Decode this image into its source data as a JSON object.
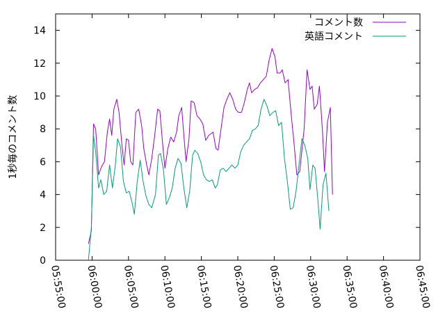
{
  "chart_data": {
    "type": "line",
    "title": "",
    "xlabel": "",
    "ylabel": "1秒毎のコメント数",
    "xlim": [
      "05:55:00",
      "06:45:00"
    ],
    "ylim": [
      0,
      15
    ],
    "x_ticks": [
      "05:55:00",
      "06:00:00",
      "06:05:00",
      "06:10:00",
      "06:15:00",
      "06:20:00",
      "06:25:00",
      "06:30:00",
      "06:35:00",
      "06:40:00",
      "06:45:00"
    ],
    "y_ticks": [
      0,
      2,
      4,
      6,
      8,
      10,
      12,
      14
    ],
    "grid": false,
    "legend_position": "top-right",
    "series": [
      {
        "name": "コメント数",
        "color": "#9400d3",
        "points": [
          [
            "05:59:30",
            1.0
          ],
          [
            "05:59:54",
            1.8
          ],
          [
            "06:00:12",
            8.3
          ],
          [
            "06:00:30",
            8.0
          ],
          [
            "06:00:54",
            5.2
          ],
          [
            "06:01:18",
            5.7
          ],
          [
            "06:01:42",
            6.0
          ],
          [
            "06:02:06",
            7.8
          ],
          [
            "06:02:24",
            8.6
          ],
          [
            "06:02:42",
            7.6
          ],
          [
            "06:03:00",
            9.2
          ],
          [
            "06:03:24",
            9.8
          ],
          [
            "06:03:42",
            9.0
          ],
          [
            "06:04:06",
            7.0
          ],
          [
            "06:04:24",
            5.8
          ],
          [
            "06:04:42",
            7.4
          ],
          [
            "06:05:00",
            7.3
          ],
          [
            "06:05:18",
            6.0
          ],
          [
            "06:05:36",
            5.8
          ],
          [
            "06:06:00",
            9.0
          ],
          [
            "06:06:24",
            9.2
          ],
          [
            "06:06:48",
            8.2
          ],
          [
            "06:07:06",
            6.8
          ],
          [
            "06:07:30",
            5.8
          ],
          [
            "06:07:48",
            5.2
          ],
          [
            "06:08:12",
            6.2
          ],
          [
            "06:08:36",
            7.6
          ],
          [
            "06:09:00",
            9.2
          ],
          [
            "06:09:18",
            9.1
          ],
          [
            "06:09:42",
            7.0
          ],
          [
            "06:10:00",
            5.6
          ],
          [
            "06:10:24",
            6.8
          ],
          [
            "06:10:48",
            7.5
          ],
          [
            "06:11:12",
            7.2
          ],
          [
            "06:11:36",
            7.8
          ],
          [
            "06:11:54",
            8.8
          ],
          [
            "06:12:18",
            9.3
          ],
          [
            "06:12:36",
            7.6
          ],
          [
            "06:12:54",
            6.0
          ],
          [
            "06:13:18",
            7.4
          ],
          [
            "06:13:36",
            9.7
          ],
          [
            "06:14:00",
            9.6
          ],
          [
            "06:14:24",
            8.8
          ],
          [
            "06:14:48",
            8.6
          ],
          [
            "06:15:12",
            8.3
          ],
          [
            "06:15:36",
            7.3
          ],
          [
            "06:16:00",
            7.6
          ],
          [
            "06:16:36",
            7.8
          ],
          [
            "06:17:00",
            6.8
          ],
          [
            "06:17:18",
            6.7
          ],
          [
            "06:17:42",
            8.0
          ],
          [
            "06:18:06",
            9.3
          ],
          [
            "06:18:30",
            9.8
          ],
          [
            "06:18:54",
            10.2
          ],
          [
            "06:19:18",
            9.8
          ],
          [
            "06:19:42",
            9.2
          ],
          [
            "06:20:06",
            9.0
          ],
          [
            "06:20:30",
            9.0
          ],
          [
            "06:20:54",
            9.6
          ],
          [
            "06:21:18",
            10.4
          ],
          [
            "06:21:36",
            10.8
          ],
          [
            "06:21:54",
            10.2
          ],
          [
            "06:22:18",
            10.4
          ],
          [
            "06:22:42",
            10.5
          ],
          [
            "06:23:06",
            10.8
          ],
          [
            "06:23:30",
            11.0
          ],
          [
            "06:23:54",
            11.2
          ],
          [
            "06:24:18",
            12.2
          ],
          [
            "06:24:42",
            12.9
          ],
          [
            "06:25:06",
            12.4
          ],
          [
            "06:25:24",
            11.4
          ],
          [
            "06:25:48",
            11.4
          ],
          [
            "06:26:06",
            11.6
          ],
          [
            "06:26:30",
            10.8
          ],
          [
            "06:26:54",
            11.0
          ],
          [
            "06:27:18",
            9.0
          ],
          [
            "06:27:42",
            7.2
          ],
          [
            "06:28:06",
            5.2
          ],
          [
            "06:28:30",
            5.4
          ],
          [
            "06:29:06",
            8.0
          ],
          [
            "06:29:30",
            11.6
          ],
          [
            "06:29:54",
            10.4
          ],
          [
            "06:30:12",
            10.6
          ],
          [
            "06:30:30",
            9.2
          ],
          [
            "06:30:54",
            9.5
          ],
          [
            "06:31:12",
            10.6
          ],
          [
            "06:31:36",
            8.0
          ],
          [
            "06:31:54",
            5.4
          ],
          [
            "06:32:18",
            8.4
          ],
          [
            "06:32:42",
            9.3
          ],
          [
            "06:33:00",
            4.0
          ]
        ]
      },
      {
        "name": "英語コメント",
        "color": "#009e73",
        "points": [
          [
            "05:59:30",
            0.0
          ],
          [
            "05:59:54",
            2.0
          ],
          [
            "06:00:12",
            7.6
          ],
          [
            "06:00:30",
            6.6
          ],
          [
            "06:00:54",
            4.4
          ],
          [
            "06:01:12",
            4.9
          ],
          [
            "06:01:36",
            4.0
          ],
          [
            "06:02:00",
            4.2
          ],
          [
            "06:02:24",
            5.8
          ],
          [
            "06:02:48",
            4.4
          ],
          [
            "06:03:12",
            5.8
          ],
          [
            "06:03:30",
            7.4
          ],
          [
            "06:03:54",
            6.9
          ],
          [
            "06:04:18",
            4.8
          ],
          [
            "06:04:42",
            4.1
          ],
          [
            "06:05:06",
            4.2
          ],
          [
            "06:05:30",
            3.5
          ],
          [
            "06:05:48",
            2.8
          ],
          [
            "06:06:12",
            4.8
          ],
          [
            "06:06:36",
            6.1
          ],
          [
            "06:07:00",
            4.8
          ],
          [
            "06:07:24",
            3.9
          ],
          [
            "06:07:48",
            3.4
          ],
          [
            "06:08:12",
            3.2
          ],
          [
            "06:08:42",
            4.0
          ],
          [
            "06:09:06",
            6.4
          ],
          [
            "06:09:24",
            6.5
          ],
          [
            "06:09:48",
            5.5
          ],
          [
            "06:10:12",
            3.4
          ],
          [
            "06:10:36",
            3.8
          ],
          [
            "06:11:00",
            4.4
          ],
          [
            "06:11:24",
            5.6
          ],
          [
            "06:11:48",
            6.2
          ],
          [
            "06:12:12",
            5.9
          ],
          [
            "06:12:36",
            4.4
          ],
          [
            "06:13:00",
            3.2
          ],
          [
            "06:13:24",
            4.2
          ],
          [
            "06:13:48",
            6.4
          ],
          [
            "06:14:06",
            6.7
          ],
          [
            "06:14:30",
            6.5
          ],
          [
            "06:14:54",
            6.0
          ],
          [
            "06:15:18",
            5.2
          ],
          [
            "06:15:42",
            4.9
          ],
          [
            "06:16:06",
            4.8
          ],
          [
            "06:16:30",
            4.9
          ],
          [
            "06:16:54",
            4.4
          ],
          [
            "06:17:12",
            4.6
          ],
          [
            "06:17:36",
            5.5
          ],
          [
            "06:18:00",
            5.6
          ],
          [
            "06:18:24",
            5.4
          ],
          [
            "06:18:48",
            5.6
          ],
          [
            "06:19:12",
            5.8
          ],
          [
            "06:19:36",
            5.6
          ],
          [
            "06:20:00",
            5.8
          ],
          [
            "06:20:24",
            6.6
          ],
          [
            "06:20:48",
            7.0
          ],
          [
            "06:21:12",
            7.2
          ],
          [
            "06:21:36",
            7.4
          ],
          [
            "06:22:00",
            7.9
          ],
          [
            "06:22:24",
            8.0
          ],
          [
            "06:22:48",
            8.2
          ],
          [
            "06:23:12",
            9.2
          ],
          [
            "06:23:36",
            9.8
          ],
          [
            "06:24:00",
            9.4
          ],
          [
            "06:24:24",
            8.8
          ],
          [
            "06:24:48",
            9.0
          ],
          [
            "06:25:12",
            9.1
          ],
          [
            "06:25:36",
            8.2
          ],
          [
            "06:26:00",
            8.4
          ],
          [
            "06:26:24",
            6.2
          ],
          [
            "06:26:48",
            4.8
          ],
          [
            "06:27:12",
            3.1
          ],
          [
            "06:27:36",
            3.2
          ],
          [
            "06:28:00",
            4.2
          ],
          [
            "06:28:24",
            5.8
          ],
          [
            "06:28:48",
            7.4
          ],
          [
            "06:29:12",
            7.0
          ],
          [
            "06:29:36",
            6.2
          ],
          [
            "06:29:54",
            4.3
          ],
          [
            "06:30:18",
            5.8
          ],
          [
            "06:30:36",
            5.6
          ],
          [
            "06:31:00",
            3.6
          ],
          [
            "06:31:18",
            1.9
          ],
          [
            "06:31:42",
            4.6
          ],
          [
            "06:32:06",
            5.3
          ],
          [
            "06:32:30",
            3.0
          ]
        ]
      }
    ]
  }
}
